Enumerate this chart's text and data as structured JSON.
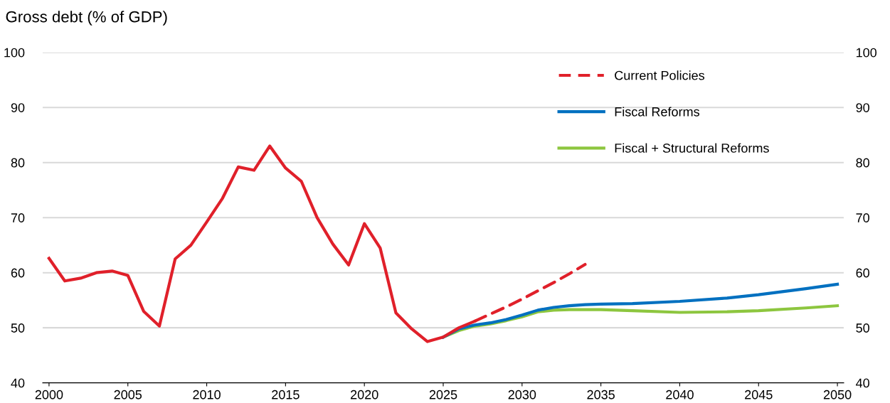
{
  "chart_data": {
    "type": "line",
    "title": "Gross debt (% of GDP)",
    "series": [
      {
        "color": "#e0202a",
        "line_style": "solid",
        "x": [
          2000,
          2001,
          2002,
          2003,
          2004,
          2005,
          2006,
          2007,
          2008,
          2009,
          2010,
          2011,
          2012,
          2013,
          2014,
          2015,
          2016,
          2017,
          2018,
          2019,
          2020,
          2021,
          2022,
          2023,
          2024,
          2025,
          2026,
          2027
        ],
        "values": [
          62.6,
          58.5,
          59.0,
          60.0,
          60.3,
          59.5,
          53.0,
          50.3,
          62.5,
          65.0,
          69.2,
          73.5,
          79.2,
          78.6,
          83.0,
          79.0,
          76.6,
          70.0,
          65.2,
          61.4,
          68.9,
          64.5,
          52.7,
          49.8,
          47.5,
          48.3,
          50.0,
          51.2
        ]
      },
      {
        "name": "Current Policies",
        "color": "#e0202a",
        "line_style": "dashed",
        "x": [
          2027,
          2028,
          2029,
          2030,
          2031,
          2032,
          2033,
          2034
        ],
        "values": [
          51.2,
          52.5,
          53.8,
          55.2,
          56.7,
          58.2,
          59.8,
          61.5
        ]
      },
      {
        "name": "Fiscal Reforms",
        "color": "#0070c0",
        "line_style": "solid",
        "x": [
          2025,
          2026,
          2027,
          2028,
          2029,
          2030,
          2031,
          2032,
          2033,
          2034,
          2035,
          2037,
          2040,
          2043,
          2045,
          2048,
          2050
        ],
        "values": [
          48.3,
          49.8,
          50.5,
          50.9,
          51.5,
          52.3,
          53.2,
          53.7,
          54.0,
          54.2,
          54.3,
          54.4,
          54.8,
          55.4,
          56.0,
          57.1,
          57.9
        ]
      },
      {
        "name": "Fiscal + Structural Reforms",
        "color": "#8dc63f",
        "line_style": "solid",
        "x": [
          2025,
          2026,
          2027,
          2028,
          2029,
          2030,
          2031,
          2032,
          2033,
          2035,
          2037,
          2040,
          2043,
          2045,
          2048,
          2050
        ],
        "values": [
          48.3,
          49.5,
          50.3,
          50.7,
          51.3,
          52.0,
          52.9,
          53.2,
          53.3,
          53.3,
          53.1,
          52.8,
          52.9,
          53.1,
          53.6,
          54.0
        ]
      }
    ],
    "xlim": [
      1999.6,
      2050.4
    ],
    "xticks": [
      2000,
      2005,
      2010,
      2015,
      2020,
      2025,
      2030,
      2035,
      2040,
      2045,
      2050
    ],
    "ylim": [
      40,
      100
    ],
    "yticks": [
      40,
      50,
      60,
      70,
      80,
      90,
      100
    ],
    "y2lim": [
      40,
      100
    ],
    "y2ticks": [
      40,
      50,
      60,
      70,
      80,
      90,
      100
    ],
    "grid": "y",
    "legend": "top right",
    "marker": "none"
  }
}
